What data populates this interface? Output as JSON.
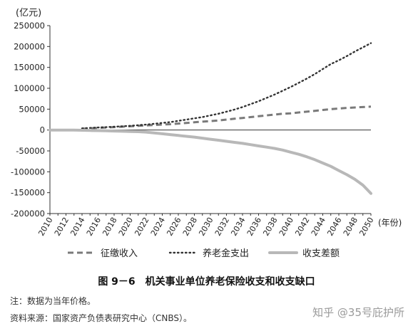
{
  "chart_data": {
    "type": "line",
    "unit_label": "(亿元)",
    "x_axis_unit": "(年份)",
    "x": [
      2010,
      2011,
      2012,
      2013,
      2014,
      2015,
      2016,
      2017,
      2018,
      2019,
      2020,
      2021,
      2022,
      2023,
      2024,
      2025,
      2026,
      2027,
      2028,
      2029,
      2030,
      2031,
      2032,
      2033,
      2034,
      2035,
      2036,
      2037,
      2038,
      2039,
      2040,
      2041,
      2042,
      2043,
      2044,
      2045,
      2046,
      2047,
      2048,
      2049,
      2050
    ],
    "x_ticks": [
      "2010",
      "2012",
      "2014",
      "2016",
      "2018",
      "2020",
      "2022",
      "2024",
      "2026",
      "2028",
      "2030",
      "2032",
      "2034",
      "2036",
      "2038",
      "2040",
      "2042",
      "2044",
      "2046",
      "2048",
      "2050"
    ],
    "y_ticks": [
      "250000",
      "200000",
      "150000",
      "100000",
      "50000",
      "0",
      "-50000",
      "-100000",
      "-150000",
      "-200000"
    ],
    "ylim": [
      -200000,
      250000
    ],
    "xlim": [
      2010,
      2050
    ],
    "grid": false,
    "legend_position": "bottom",
    "series": [
      {
        "name": "征缴收入",
        "style": "dashed",
        "color": "#7a7a7a",
        "values": [
          null,
          null,
          null,
          null,
          3000,
          4000,
          5000,
          6000,
          7000,
          8000,
          9000,
          10000,
          11000,
          12000,
          13000,
          14000,
          15500,
          17000,
          18500,
          20000,
          21500,
          23000,
          25000,
          27000,
          29000,
          31000,
          33000,
          35000,
          37000,
          39000,
          40000,
          42000,
          44000,
          46000,
          48000,
          50000,
          51500,
          53000,
          54000,
          55000,
          56000
        ]
      },
      {
        "name": "养老金支出",
        "style": "dotted",
        "color": "#333333",
        "values": [
          null,
          null,
          null,
          null,
          4000,
          5000,
          6000,
          7000,
          8000,
          9000,
          10000,
          11500,
          13000,
          15000,
          17000,
          19000,
          22000,
          25000,
          28000,
          31000,
          35000,
          39000,
          44000,
          49000,
          55000,
          62000,
          69000,
          77000,
          85000,
          94000,
          103000,
          113000,
          123000,
          134000,
          146000,
          158000,
          167000,
          177000,
          188000,
          198000,
          208000
        ]
      },
      {
        "name": "收支差额",
        "style": "solid",
        "color": "#b8b8b8",
        "values": [
          0,
          0,
          0,
          0,
          -500,
          -1000,
          -1500,
          -2000,
          -2500,
          -3000,
          -3500,
          -4000,
          -5000,
          -7000,
          -9000,
          -11000,
          -13000,
          -15000,
          -17000,
          -19500,
          -22000,
          -24500,
          -27000,
          -29500,
          -32000,
          -35000,
          -38000,
          -41000,
          -44000,
          -48000,
          -53000,
          -58000,
          -64000,
          -71000,
          -79000,
          -87000,
          -97000,
          -107000,
          -118000,
          -132000,
          -152000
        ]
      }
    ]
  },
  "caption": "图 9－6　机关事业单位养老保险收支和收支缺口",
  "notes": {
    "note1": "注：数据为当年价格。",
    "note2": "资料来源：国家资产负债表研究中心（CNBS）。"
  },
  "watermark": "知乎 @35号庇护所"
}
